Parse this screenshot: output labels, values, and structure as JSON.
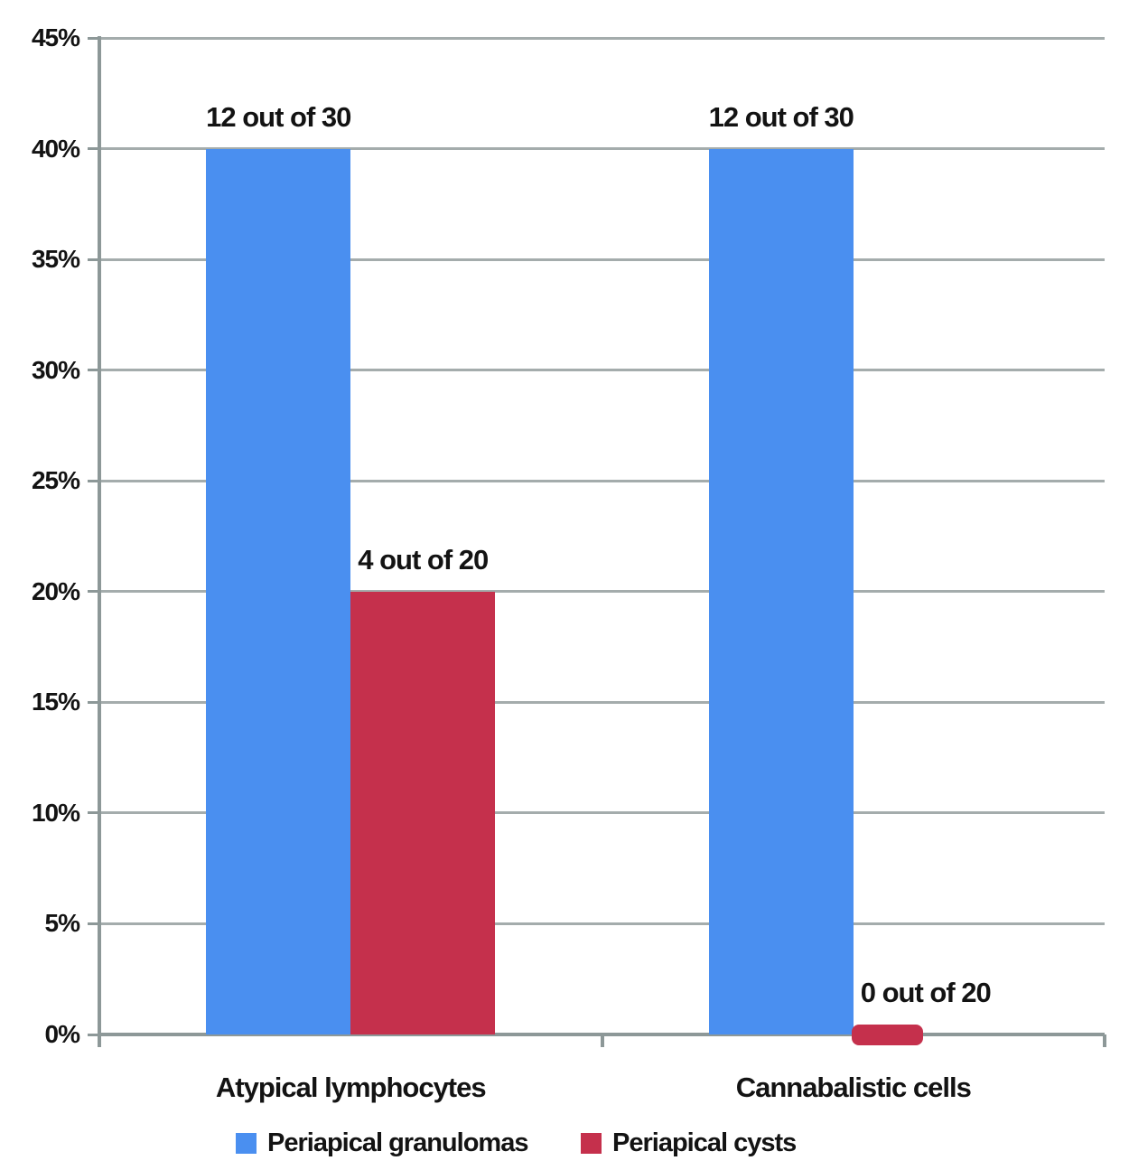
{
  "chart_data": {
    "type": "bar",
    "title": "",
    "xlabel": "",
    "ylabel": "",
    "categories": [
      "Atypical lymphocytes",
      "Cannabalistic cells"
    ],
    "series": [
      {
        "name": "Periapical granulomas",
        "color": "#4a8ff0",
        "values": [
          40,
          40
        ],
        "value_labels": [
          "12 out of 30",
          "12 out of 30"
        ]
      },
      {
        "name": "Periapical cysts",
        "color": "#c5304c",
        "values": [
          20,
          0
        ],
        "value_labels": [
          "4 out of 20",
          "0 out of 20"
        ]
      }
    ],
    "ylim": [
      0,
      45
    ],
    "ytick_step": 5,
    "ytick_labels": [
      "0%",
      "5%",
      "10%",
      "15%",
      "20%",
      "25%",
      "30%",
      "35%",
      "40%",
      "45%"
    ],
    "grid": true,
    "legend_position": "bottom"
  },
  "legend": {
    "items": [
      {
        "label": "Periapical granulomas",
        "color": "#4a8ff0"
      },
      {
        "label": "Periapical cysts",
        "color": "#c5304c"
      }
    ]
  },
  "colors": {
    "gridline": "#a4acac",
    "axis": "#8d9898",
    "text": "#131313",
    "background": "#ffffff"
  }
}
